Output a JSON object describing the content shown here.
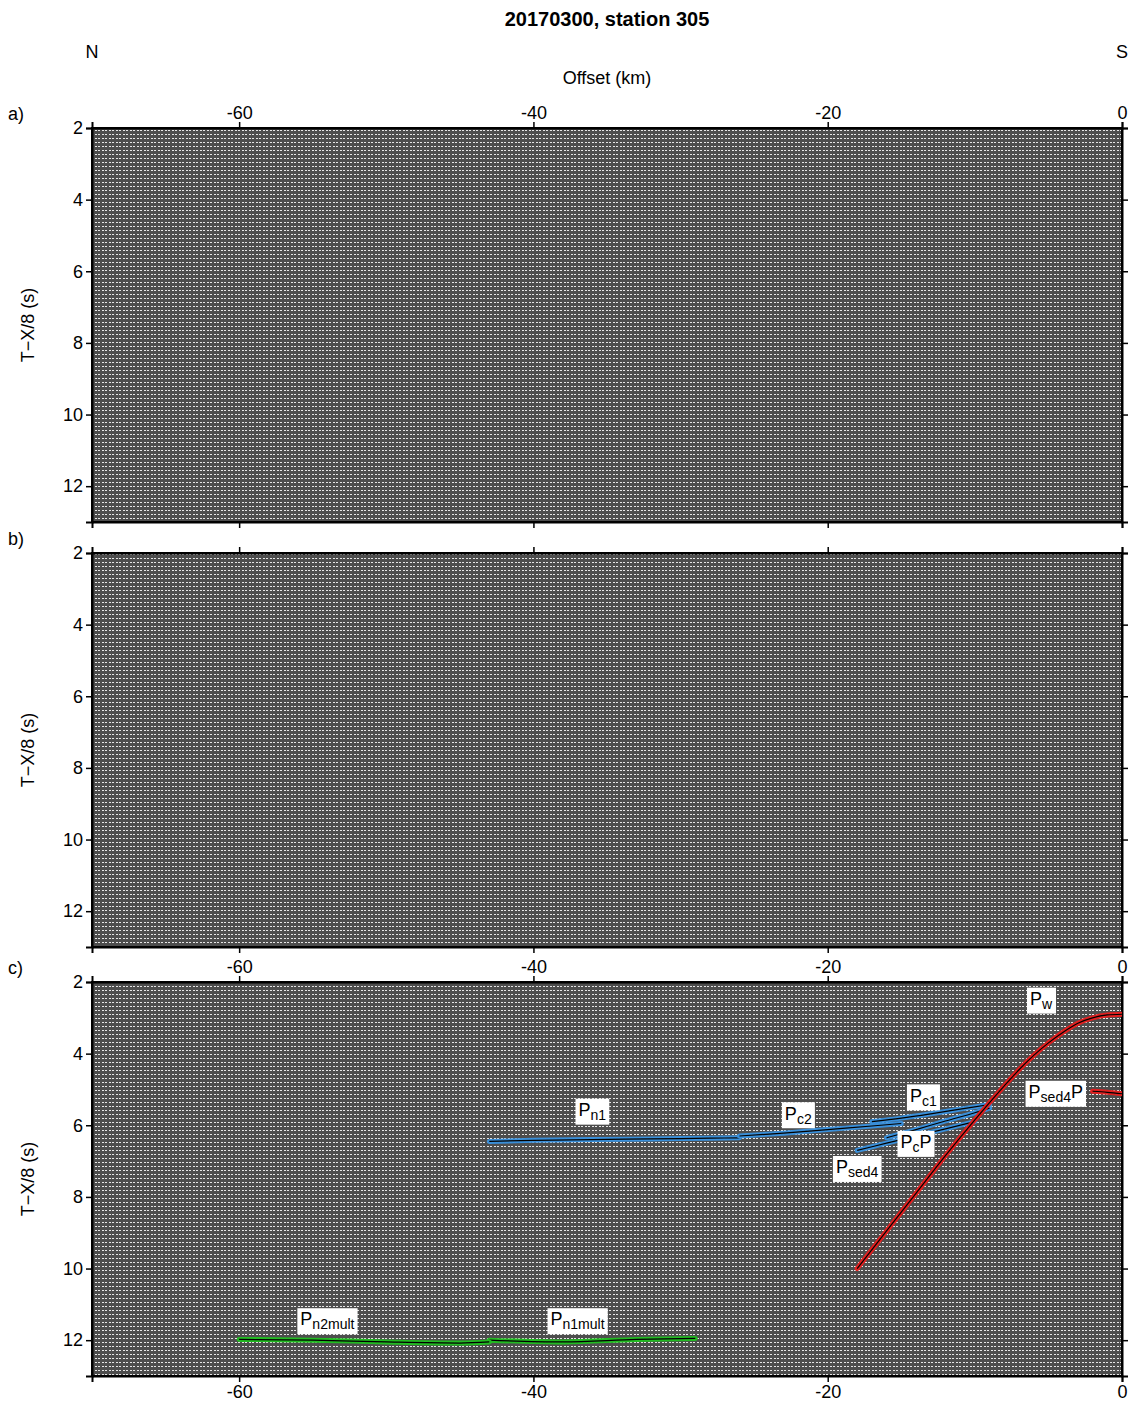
{
  "chart_data": [
    {
      "type": "line",
      "title": "20170300, station 305",
      "panel": "a)",
      "direction_labels": [
        "N",
        "S"
      ],
      "xlabel": "Offset (km)",
      "ylabel": "T−X/8 (s)",
      "xlim": [
        -70,
        0
      ],
      "xticks": [
        -60,
        -40,
        -20,
        0
      ],
      "ylim": [
        2,
        13
      ],
      "yticks": [
        2,
        4,
        6,
        8,
        10,
        12
      ],
      "tick_labels": true,
      "series": []
    },
    {
      "type": "line",
      "panel": "b)",
      "ylabel": "T−X/8 (s)",
      "xlim": [
        -70,
        0
      ],
      "xticks": [
        -60,
        -40,
        -20,
        0
      ],
      "ylim": [
        2,
        13
      ],
      "yticks": [
        2,
        4,
        6,
        8,
        10,
        12
      ],
      "tick_labels": "y",
      "series": []
    },
    {
      "type": "line",
      "panel": "c)",
      "ylabel": "T−X/8 (s)",
      "xlim": [
        -70,
        0
      ],
      "xticks": [
        -60,
        -40,
        -20,
        0
      ],
      "ylim": [
        2,
        13
      ],
      "yticks": [
        2,
        4,
        6,
        8,
        10,
        12
      ],
      "tick_labels": true,
      "series": [
        {
          "color": "#3a8fd9",
          "x": [
            -43,
            -40,
            -36,
            -32,
            -28,
            -26
          ],
          "values": [
            6.45,
            6.42,
            6.4,
            6.38,
            6.36,
            6.35
          ]
        },
        {
          "color": "#3a8fd9",
          "x": [
            -26,
            -23,
            -20,
            -17,
            -15
          ],
          "values": [
            6.3,
            6.22,
            6.12,
            6.02,
            5.95
          ]
        },
        {
          "color": "#3a8fd9",
          "x": [
            -17,
            -15,
            -13,
            -11,
            -9
          ],
          "values": [
            5.9,
            5.8,
            5.68,
            5.55,
            5.42
          ]
        },
        {
          "color": "#3a8fd9",
          "x": [
            -16,
            -14,
            -12,
            -10,
            -9
          ],
          "values": [
            6.35,
            6.12,
            5.88,
            5.65,
            5.52
          ]
        },
        {
          "color": "#3a8fd9",
          "x": [
            -18,
            -16,
            -14,
            -12,
            -10
          ],
          "values": [
            6.7,
            6.5,
            6.3,
            6.1,
            5.9
          ]
        },
        {
          "color": "#e02020",
          "x": [
            0,
            -1,
            -2,
            -3,
            -4,
            -5,
            -6,
            -7,
            -8,
            -10,
            -12,
            -14,
            -16,
            -18
          ],
          "values": [
            2.9,
            2.92,
            3.0,
            3.15,
            3.4,
            3.7,
            4.05,
            4.45,
            4.9,
            5.85,
            6.85,
            7.9,
            8.95,
            10.0
          ]
        },
        {
          "color": "#e02020",
          "x": [
            -2,
            -1,
            0
          ],
          "values": [
            5.05,
            5.08,
            5.12
          ]
        },
        {
          "color": "#22bb22",
          "x": [
            -43,
            -38,
            -33,
            -29
          ],
          "values": [
            12.0,
            12.05,
            11.98,
            11.95
          ]
        },
        {
          "color": "#22bb22",
          "x": [
            -60,
            -55,
            -50,
            -45,
            -43
          ],
          "values": [
            11.98,
            12.0,
            12.05,
            12.08,
            12.05
          ]
        }
      ],
      "annotations": [
        {
          "text": "Pn1",
          "x": -36,
          "y": 5.6
        },
        {
          "text": "Pc2",
          "x": -22,
          "y": 5.7
        },
        {
          "text": "Pc1",
          "x": -13.5,
          "y": 5.2
        },
        {
          "text": "PcP",
          "x": -14,
          "y": 6.5
        },
        {
          "text": "Psed4",
          "x": -18,
          "y": 7.2
        },
        {
          "text": "Pw",
          "x": -5.5,
          "y": 2.5
        },
        {
          "text": "Psed4P",
          "x": -4.5,
          "y": 5.1
        },
        {
          "text": "Pn2mult",
          "x": -54,
          "y": 11.45
        },
        {
          "text": "Pn1mult",
          "x": -37,
          "y": 11.45
        }
      ]
    }
  ]
}
